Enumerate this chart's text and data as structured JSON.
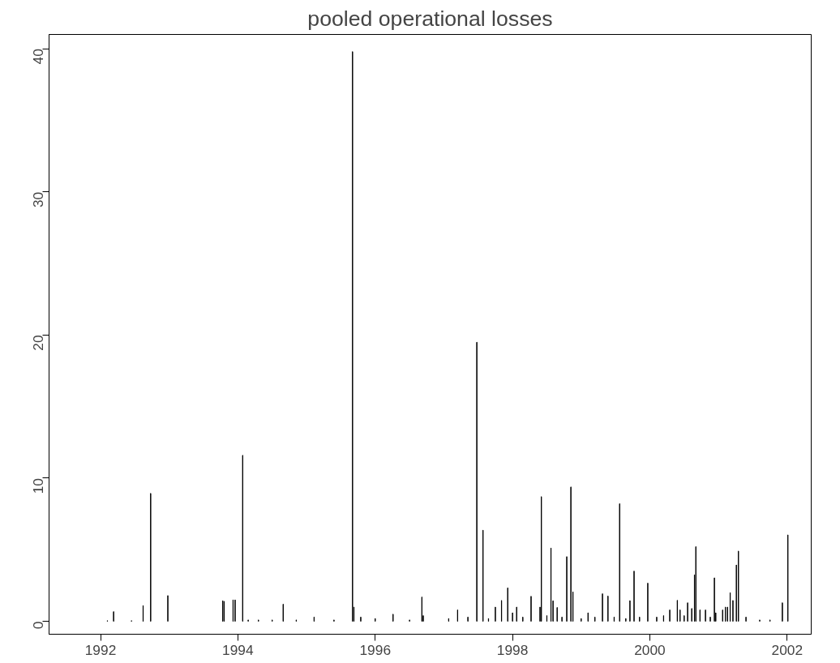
{
  "chart_data": {
    "type": "bar",
    "title": "pooled operational losses",
    "color": "#000000",
    "x": [
      1992.1,
      1992.19,
      1992.45,
      1992.62,
      1992.73,
      1992.98,
      1993.78,
      1993.8,
      1993.93,
      1993.96,
      1994.07,
      1994.15,
      1994.3,
      1994.5,
      1994.66,
      1994.85,
      1995.11,
      1995.4,
      1995.67,
      1995.69,
      1995.79,
      1996.0,
      1996.26,
      1996.5,
      1996.68,
      1996.7,
      1997.07,
      1997.2,
      1997.35,
      1997.48,
      1997.57,
      1997.65,
      1997.75,
      1997.84,
      1997.93,
      1998.0,
      1998.06,
      1998.15,
      1998.27,
      1998.4,
      1998.42,
      1998.5,
      1998.56,
      1998.59,
      1998.65,
      1998.72,
      1998.79,
      1998.85,
      1998.88,
      1999.0,
      1999.1,
      1999.2,
      1999.31,
      1999.39,
      1999.48,
      1999.56,
      1999.65,
      1999.71,
      1999.77,
      1999.85,
      1999.97,
      2000.1,
      2000.2,
      2000.29,
      2000.4,
      2000.44,
      2000.5,
      2000.55,
      2000.61,
      2000.65,
      2000.67,
      2000.73,
      2000.81,
      2000.88,
      2000.94,
      2000.96,
      2001.06,
      2001.1,
      2001.13,
      2001.17,
      2001.21,
      2001.26,
      2001.29,
      2001.4,
      2001.6,
      2001.75,
      2001.93,
      2002.01
    ],
    "values": [
      0.05,
      0.68,
      0.05,
      1.1,
      8.94,
      1.8,
      1.44,
      1.4,
      1.5,
      1.5,
      11.6,
      0.1,
      0.1,
      0.1,
      1.2,
      0.1,
      0.3,
      0.1,
      39.8,
      1.0,
      0.3,
      0.2,
      0.5,
      0.1,
      1.7,
      0.4,
      0.2,
      0.8,
      0.3,
      19.5,
      6.37,
      0.2,
      1.0,
      1.46,
      2.34,
      0.6,
      1.0,
      0.3,
      1.75,
      1.0,
      8.71,
      0.4,
      5.12,
      1.44,
      0.97,
      0.3,
      4.52,
      9.39,
      2.06,
      0.2,
      0.6,
      0.3,
      1.93,
      1.77,
      0.3,
      8.22,
      0.2,
      1.45,
      3.51,
      0.3,
      2.67,
      0.3,
      0.4,
      0.8,
      1.47,
      0.8,
      0.4,
      1.3,
      0.9,
      3.25,
      5.22,
      0.8,
      0.8,
      0.3,
      3.04,
      0.6,
      0.8,
      1.0,
      1.0,
      2.0,
      1.46,
      3.94,
      4.91,
      0.3,
      0.1,
      0.1,
      1.3,
      6.04
    ],
    "xlim": [
      1991.25,
      2002.35
    ],
    "ylim": [
      -0.9,
      41
    ],
    "xticks": [
      1992,
      1994,
      1996,
      1998,
      2000,
      2002
    ],
    "yticks": [
      0,
      10,
      20,
      30,
      40
    ],
    "grid": false
  }
}
